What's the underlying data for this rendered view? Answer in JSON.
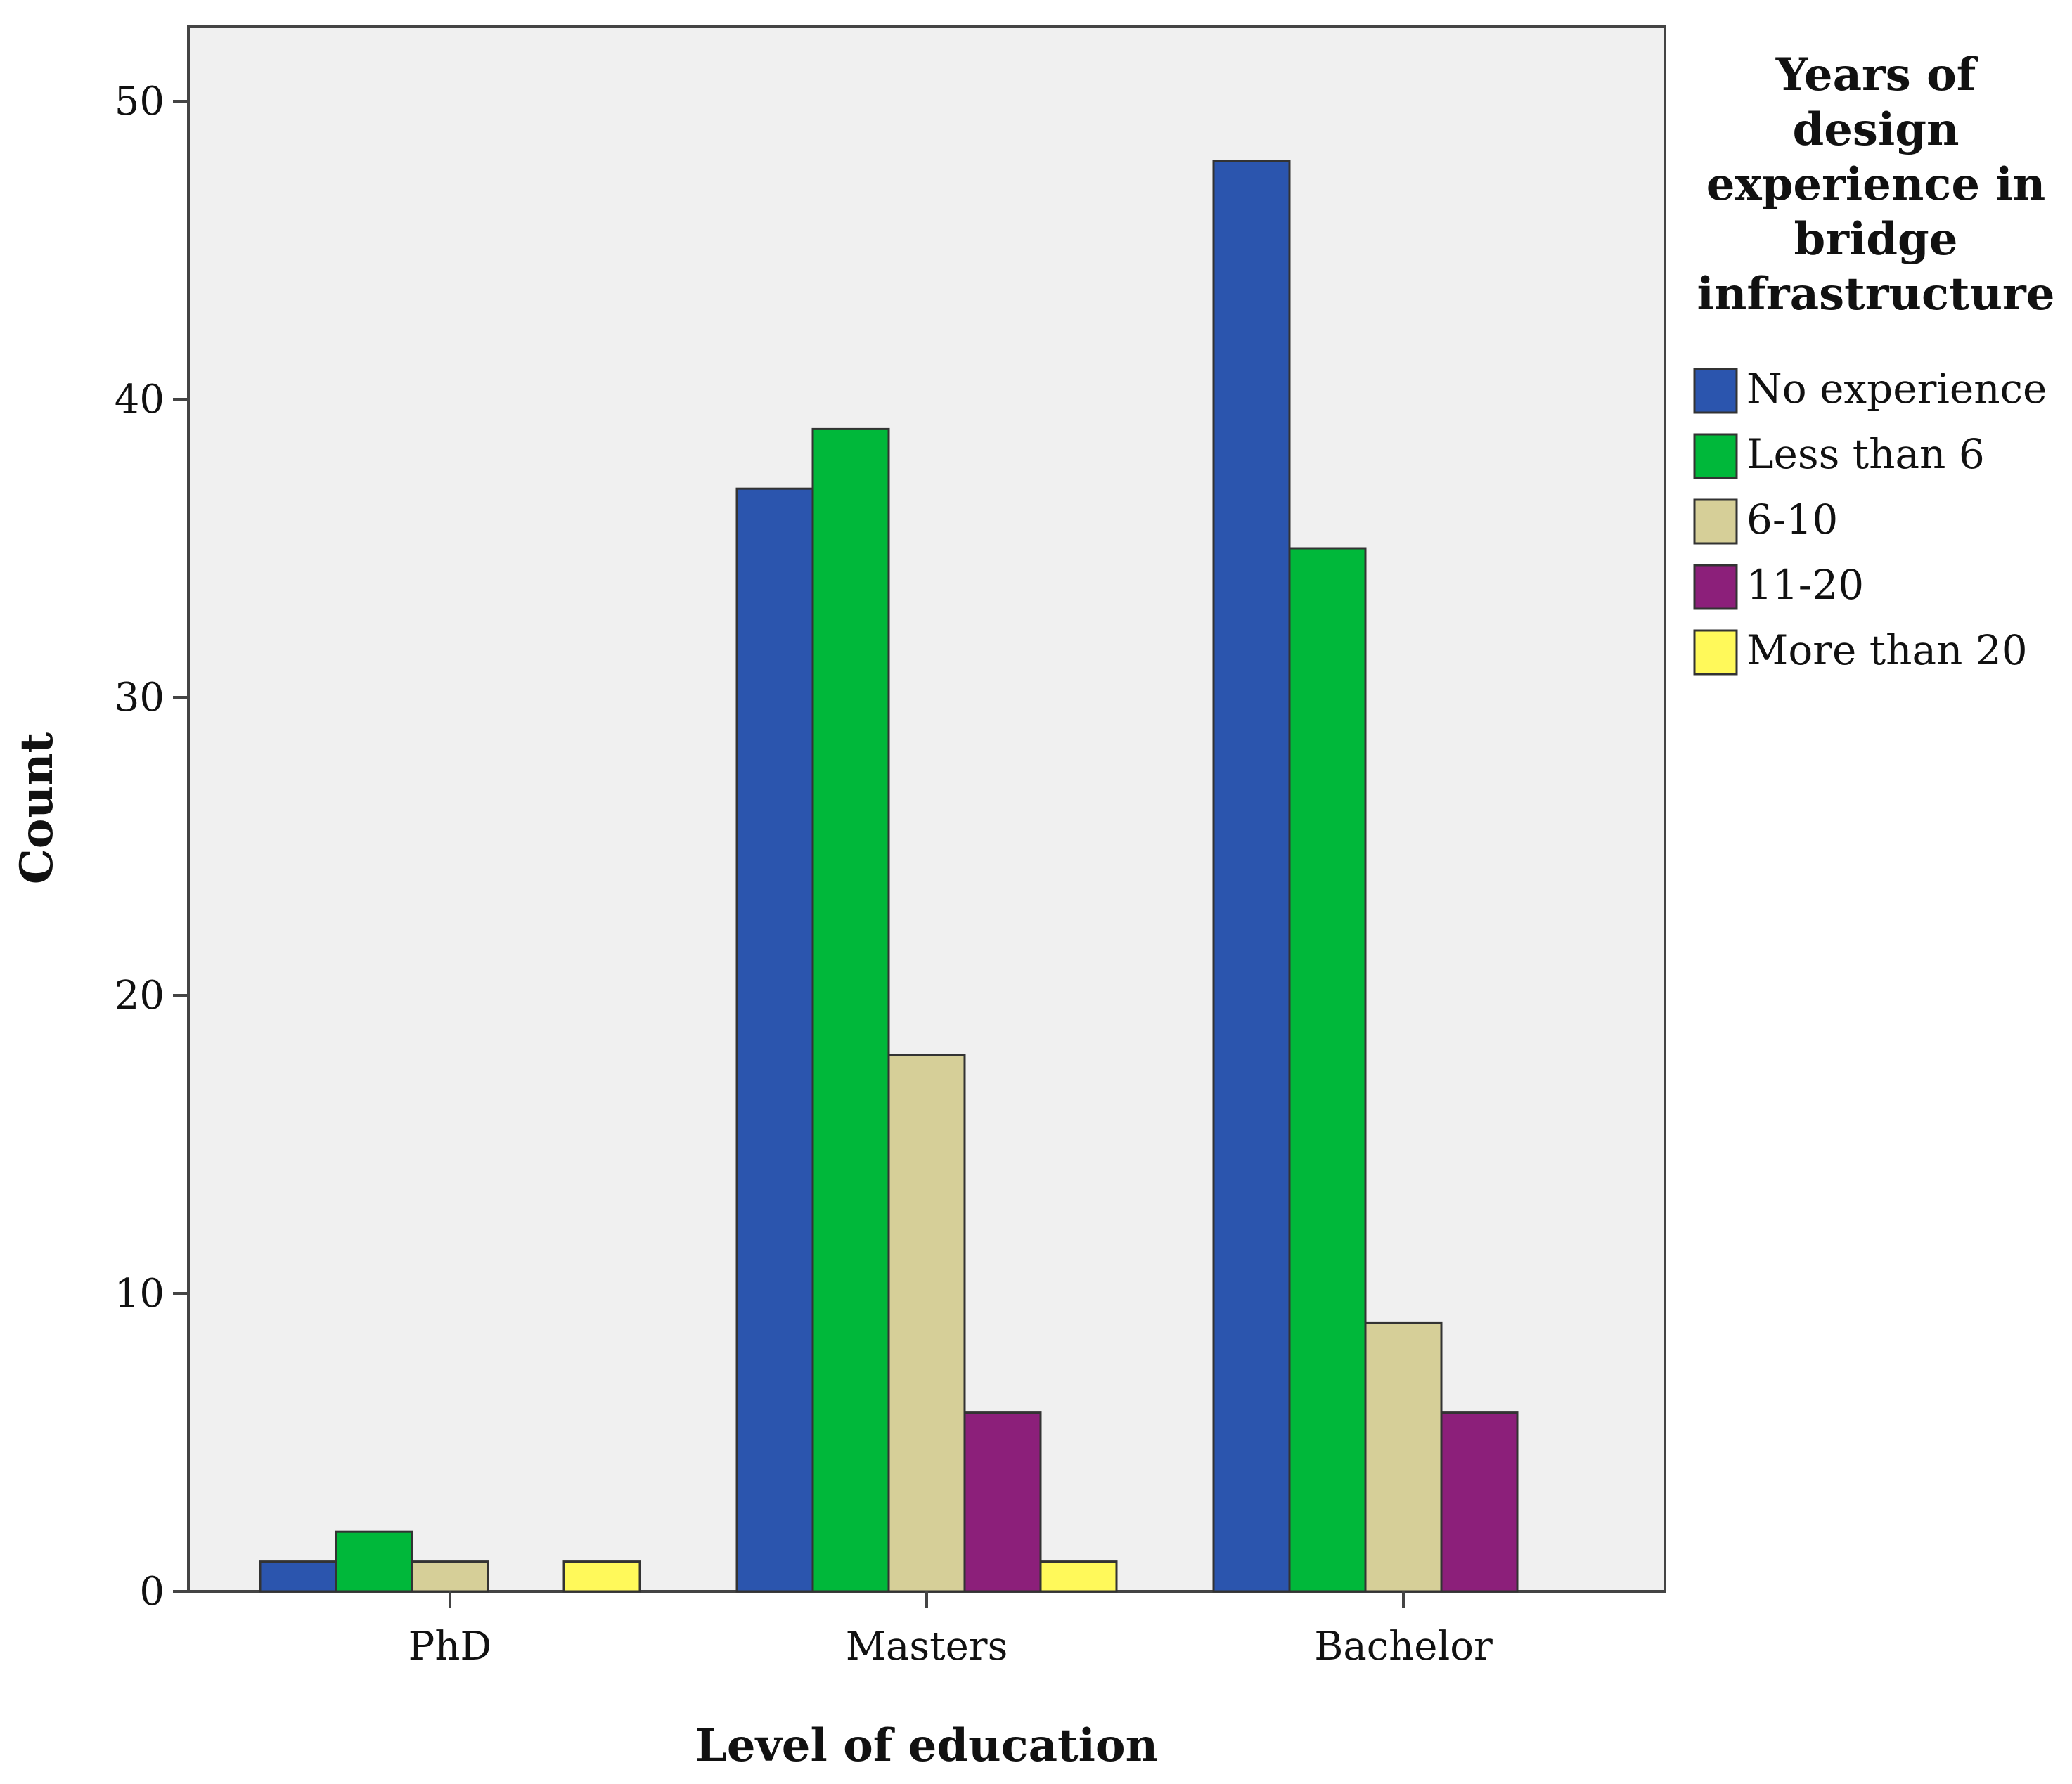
{
  "chart_data": {
    "type": "bar",
    "title": "",
    "xlabel": "Level of education",
    "ylabel": "Count",
    "categories": [
      "PhD",
      "Masters",
      "Bachelor"
    ],
    "ylim": [
      0,
      52.5
    ],
    "yticks": [
      0,
      10,
      20,
      30,
      40,
      50
    ],
    "ytick_labels": [
      "0",
      "10",
      "20",
      "30",
      "40",
      "50"
    ],
    "grid": false,
    "legend_position": "right",
    "legend_title_lines": [
      "Years of",
      "design",
      "experience in",
      "bridge",
      "infrastructure"
    ],
    "series": [
      {
        "name": "No experience",
        "color": "#2B55AE",
        "values": [
          1,
          37,
          48
        ]
      },
      {
        "name": "Less than 6",
        "color": "#00B83A",
        "values": [
          2,
          39,
          35
        ]
      },
      {
        "name": "6-10",
        "color": "#D6CF98",
        "values": [
          1,
          18,
          9
        ]
      },
      {
        "name": "11-20",
        "color": "#8C1F7A",
        "values": [
          0,
          6,
          6
        ]
      },
      {
        "name": "More than 20",
        "color": "#FFF95A",
        "values": [
          1,
          1,
          0
        ]
      }
    ],
    "plot_background": "#F0F0F0"
  }
}
